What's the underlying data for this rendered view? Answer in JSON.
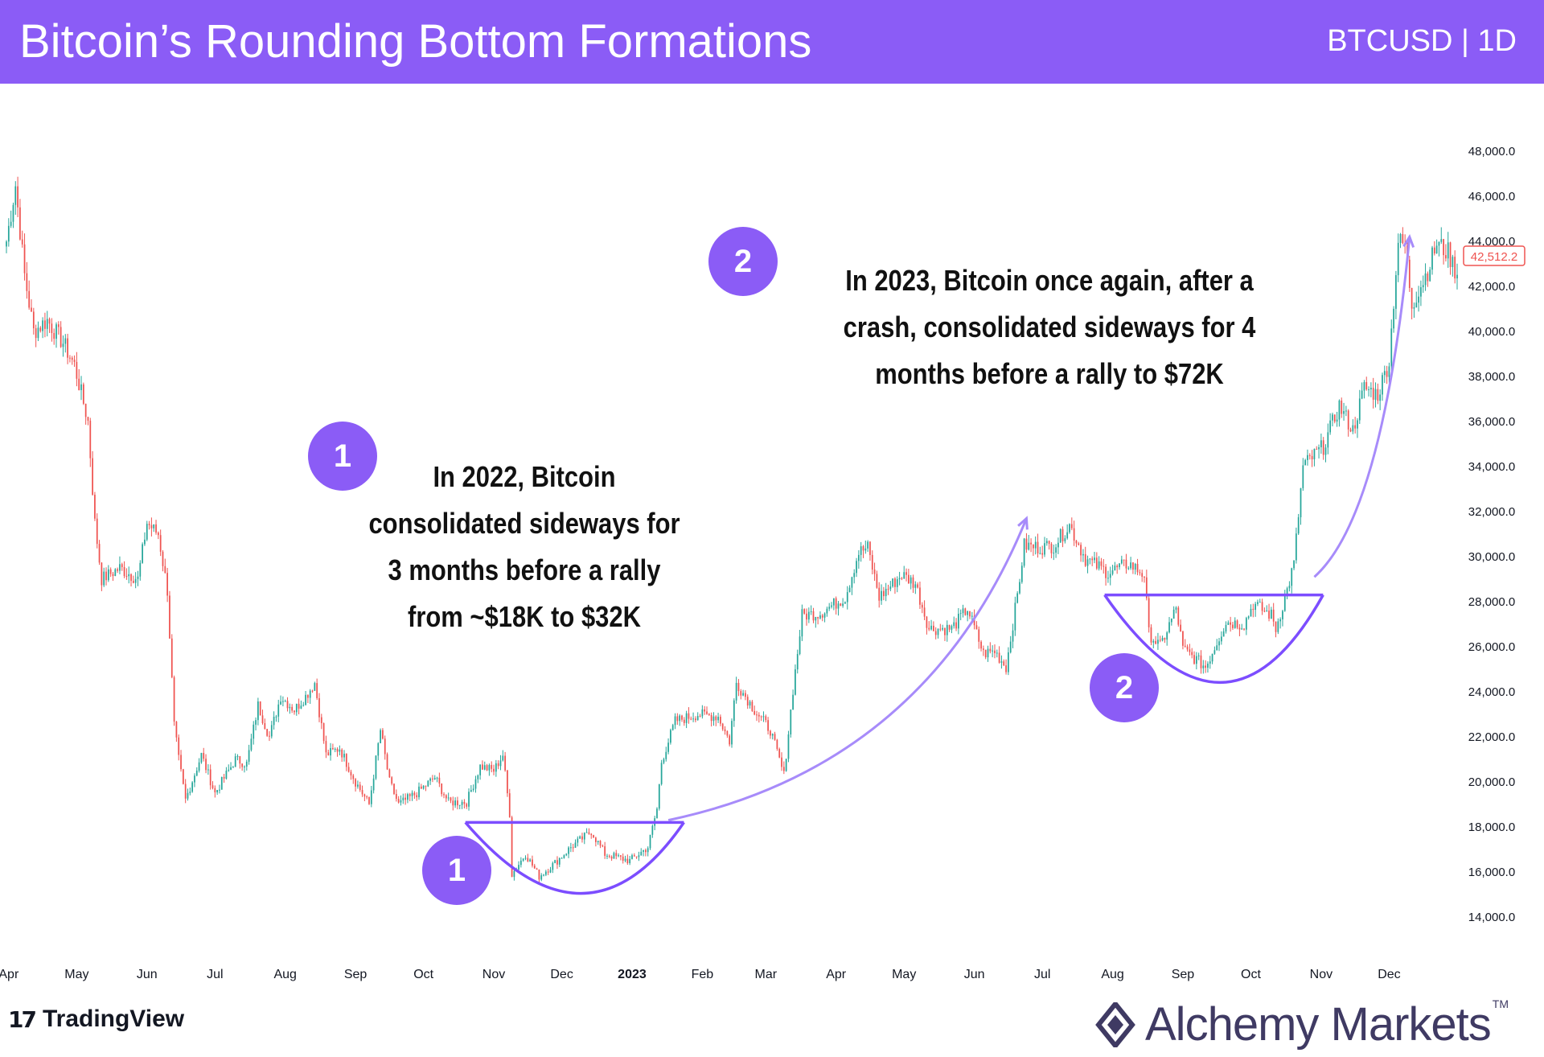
{
  "header": {
    "title": "Bitcoin’s Rounding Bottom Formations",
    "symbol": "BTCUSD | 1D"
  },
  "colors": {
    "accent": "#8b5cf6",
    "up": "#26a69a",
    "down": "#ef5350",
    "formation": "#7c4dff",
    "arrow": "#a78bfa"
  },
  "annotations": {
    "badge_1": "1",
    "badge_2": "2",
    "note_2022": [
      "In 2022, Bitcoin",
      "consolidated sideways for",
      "3 months before a rally",
      "from ~$18K to $32K"
    ],
    "note_2023": [
      "In 2023, Bitcoin once again, after a",
      "crash, consolidated sideways for 4",
      "months before a rally to $72K"
    ]
  },
  "footer": {
    "tradingview": "TradingView",
    "alchemy": "Alchemy Markets",
    "tm": "TM"
  },
  "chart_data": {
    "type": "candlestick",
    "instrument": "BTCUSD",
    "timeframe": "1D",
    "x_tick_labels": [
      "Apr",
      "May",
      "Jun",
      "Jul",
      "Aug",
      "Sep",
      "Oct",
      "Nov",
      "Dec",
      "2023",
      "Feb",
      "Mar",
      "Apr",
      "May",
      "Jun",
      "Jul",
      "Aug",
      "Sep",
      "Oct",
      "Nov",
      "Dec"
    ],
    "y_ticks": [
      14000,
      16000,
      18000,
      20000,
      22000,
      24000,
      26000,
      28000,
      30000,
      32000,
      34000,
      36000,
      38000,
      40000,
      42000,
      44000,
      46000,
      48000
    ],
    "y_tick_labels": [
      "14,000.0",
      "16,000.0",
      "18,000.0",
      "20,000.0",
      "22,000.0",
      "24,000.0",
      "26,000.0",
      "28,000.0",
      "30,000.0",
      "32,000.0",
      "34,000.0",
      "36,000.0",
      "38,000.0",
      "40,000.0",
      "42,000.0",
      "44,000.0",
      "46,000.0",
      "48,000.0"
    ],
    "ylim": [
      11000,
      51000
    ],
    "last_price": 42512.2,
    "last_price_label": "42,512.2",
    "x_range": [
      "2022-03-31",
      "2023-12-31"
    ],
    "close_path": [
      [
        "2022-03-31",
        44000
      ],
      [
        "2022-04-04",
        46500
      ],
      [
        "2022-04-08",
        42500
      ],
      [
        "2022-04-12",
        40000
      ],
      [
        "2022-04-18",
        40500
      ],
      [
        "2022-04-25",
        39500
      ],
      [
        "2022-04-30",
        38500
      ],
      [
        "2022-05-06",
        36000
      ],
      [
        "2022-05-09",
        31500
      ],
      [
        "2022-05-12",
        29000
      ],
      [
        "2022-05-20",
        29500
      ],
      [
        "2022-05-28",
        29000
      ],
      [
        "2022-06-01",
        31500
      ],
      [
        "2022-06-06",
        31000
      ],
      [
        "2022-06-10",
        28500
      ],
      [
        "2022-06-13",
        22500
      ],
      [
        "2022-06-15",
        21000
      ],
      [
        "2022-06-18",
        19200
      ],
      [
        "2022-06-25",
        21200
      ],
      [
        "2022-07-01",
        19500
      ],
      [
        "2022-07-10",
        21000
      ],
      [
        "2022-07-15",
        20800
      ],
      [
        "2022-07-20",
        23400
      ],
      [
        "2022-07-25",
        22000
      ],
      [
        "2022-07-30",
        23800
      ],
      [
        "2022-08-05",
        23200
      ],
      [
        "2022-08-10",
        23800
      ],
      [
        "2022-08-14",
        24400
      ],
      [
        "2022-08-19",
        21200
      ],
      [
        "2022-08-25",
        21500
      ],
      [
        "2022-09-01",
        20000
      ],
      [
        "2022-09-07",
        19000
      ],
      [
        "2022-09-12",
        22300
      ],
      [
        "2022-09-16",
        20000
      ],
      [
        "2022-09-20",
        19000
      ],
      [
        "2022-09-28",
        19500
      ],
      [
        "2022-10-06",
        20200
      ],
      [
        "2022-10-12",
        19100
      ],
      [
        "2022-10-20",
        19100
      ],
      [
        "2022-10-26",
        20700
      ],
      [
        "2022-11-01",
        20500
      ],
      [
        "2022-11-05",
        21200
      ],
      [
        "2022-11-08",
        18600
      ],
      [
        "2022-11-09",
        15900
      ],
      [
        "2022-11-15",
        16800
      ],
      [
        "2022-11-21",
        15800
      ],
      [
        "2022-11-28",
        16400
      ],
      [
        "2022-12-05",
        17100
      ],
      [
        "2022-12-14",
        17800
      ],
      [
        "2022-12-20",
        16800
      ],
      [
        "2022-12-31",
        16500
      ],
      [
        "2023-01-08",
        17100
      ],
      [
        "2023-01-12",
        18800
      ],
      [
        "2023-01-14",
        20900
      ],
      [
        "2023-01-20",
        22700
      ],
      [
        "2023-01-30",
        23000
      ],
      [
        "2023-02-08",
        22900
      ],
      [
        "2023-02-13",
        21800
      ],
      [
        "2023-02-16",
        24400
      ],
      [
        "2023-02-24",
        23200
      ],
      [
        "2023-03-03",
        22300
      ],
      [
        "2023-03-09",
        20300
      ],
      [
        "2023-03-13",
        24100
      ],
      [
        "2023-03-17",
        27400
      ],
      [
        "2023-03-25",
        27500
      ],
      [
        "2023-04-05",
        28200
      ],
      [
        "2023-04-11",
        30200
      ],
      [
        "2023-04-15",
        30400
      ],
      [
        "2023-04-20",
        28200
      ],
      [
        "2023-04-30",
        29200
      ],
      [
        "2023-05-06",
        28800
      ],
      [
        "2023-05-12",
        26800
      ],
      [
        "2023-05-22",
        26800
      ],
      [
        "2023-05-29",
        27700
      ],
      [
        "2023-06-05",
        25700
      ],
      [
        "2023-06-10",
        25800
      ],
      [
        "2023-06-15",
        25100
      ],
      [
        "2023-06-20",
        28300
      ],
      [
        "2023-06-23",
        30500
      ],
      [
        "2023-06-30",
        30400
      ],
      [
        "2023-07-06",
        30500
      ],
      [
        "2023-07-13",
        31400
      ],
      [
        "2023-07-20",
        29900
      ],
      [
        "2023-07-30",
        29300
      ],
      [
        "2023-08-08",
        29700
      ],
      [
        "2023-08-15",
        29200
      ],
      [
        "2023-08-17",
        26600
      ],
      [
        "2023-08-22",
        26000
      ],
      [
        "2023-08-29",
        27700
      ],
      [
        "2023-09-01",
        25900
      ],
      [
        "2023-09-11",
        25100
      ],
      [
        "2023-09-20",
        27100
      ],
      [
        "2023-09-28",
        27000
      ],
      [
        "2023-10-02",
        27900
      ],
      [
        "2023-10-10",
        27400
      ],
      [
        "2023-10-12",
        26800
      ],
      [
        "2023-10-17",
        28500
      ],
      [
        "2023-10-20",
        29700
      ],
      [
        "2023-10-24",
        34000
      ],
      [
        "2023-11-02",
        34900
      ],
      [
        "2023-11-09",
        36700
      ],
      [
        "2023-11-15",
        35600
      ],
      [
        "2023-11-20",
        37500
      ],
      [
        "2023-11-26",
        37200
      ],
      [
        "2023-12-01",
        38700
      ],
      [
        "2023-12-05",
        44000
      ],
      [
        "2023-12-08",
        43800
      ],
      [
        "2023-12-11",
        41200
      ],
      [
        "2023-12-18",
        42700
      ],
      [
        "2023-12-22",
        43900
      ],
      [
        "2023-12-27",
        43500
      ],
      [
        "2023-12-31",
        42512.2
      ]
    ],
    "formations": [
      {
        "label": "1",
        "rim": 18200,
        "bottom": 15200,
        "start": "2022-11-08",
        "end": "2023-01-15"
      },
      {
        "label": "2",
        "rim": 28300,
        "bottom": 24600,
        "start": "2023-08-17",
        "end": "2023-10-24"
      }
    ],
    "rally_arrows": [
      {
        "from": [
          "2023-01-17",
          18300
        ],
        "to": [
          "2023-06-24",
          31700
        ]
      },
      {
        "from": [
          "2023-10-29",
          29100
        ],
        "to": [
          "2023-12-10",
          44200
        ]
      }
    ]
  }
}
